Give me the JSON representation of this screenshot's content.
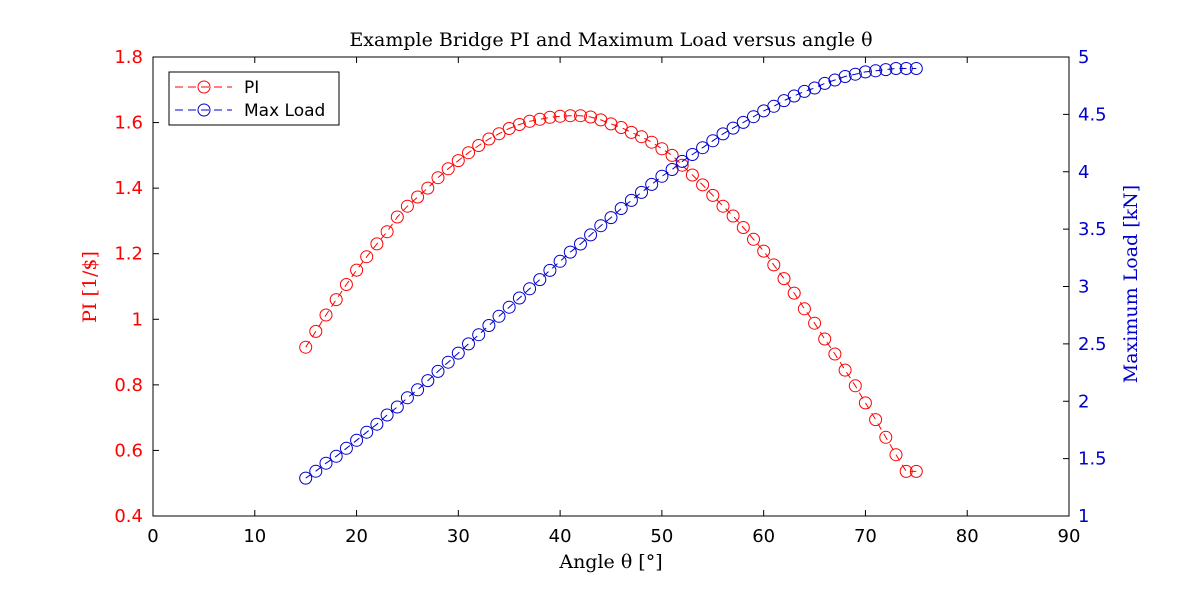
{
  "chart_data": {
    "type": "line",
    "title": "Example Bridge PI and Maximum Load versus angle θ",
    "xlabel": "Angle θ [°]",
    "ylabel_left": "PI [1/$]",
    "ylabel_right": "Maximum Load [kN]",
    "xlim": [
      0,
      90
    ],
    "ylim_left": [
      0.4,
      1.8
    ],
    "ylim_right": [
      1,
      5
    ],
    "xticks": [
      "0",
      "10",
      "20",
      "30",
      "40",
      "50",
      "60",
      "70",
      "80",
      "90"
    ],
    "yticks_left": [
      "0.4",
      "0.6",
      "0.8",
      "1",
      "1.2",
      "1.4",
      "1.6",
      "1.8"
    ],
    "yticks_right": [
      "1",
      "1.5",
      "2",
      "2.5",
      "3",
      "3.5",
      "4",
      "4.5",
      "5"
    ],
    "legend_position": "top-left",
    "grid": false,
    "x": [
      15,
      16,
      17,
      18,
      19,
      20,
      21,
      22,
      23,
      24,
      25,
      26,
      27,
      28,
      29,
      30,
      31,
      32,
      33,
      34,
      35,
      36,
      37,
      38,
      39,
      40,
      41,
      42,
      43,
      44,
      45,
      46,
      47,
      48,
      49,
      50,
      51,
      52,
      53,
      54,
      55,
      56,
      57,
      58,
      59,
      60,
      61,
      62,
      63,
      64,
      65,
      66,
      67,
      68,
      69,
      70,
      71,
      72,
      73,
      74,
      75
    ],
    "series": [
      {
        "name": "PI",
        "axis": "left",
        "color": "#ff0000",
        "values": [
          0.915,
          0.963,
          1.013,
          1.06,
          1.106,
          1.15,
          1.191,
          1.23,
          1.267,
          1.312,
          1.345,
          1.373,
          1.4,
          1.432,
          1.459,
          1.484,
          1.508,
          1.53,
          1.55,
          1.566,
          1.582,
          1.594,
          1.604,
          1.61,
          1.616,
          1.619,
          1.621,
          1.621,
          1.617,
          1.608,
          1.596,
          1.585,
          1.57,
          1.557,
          1.54,
          1.52,
          1.5,
          1.47,
          1.44,
          1.41,
          1.378,
          1.345,
          1.315,
          1.28,
          1.244,
          1.208,
          1.166,
          1.124,
          1.08,
          1.032,
          0.988,
          0.94,
          0.894,
          0.845,
          0.797,
          0.745,
          0.694,
          0.64,
          0.587,
          0.536,
          0.536
        ]
      },
      {
        "name": "Max Load",
        "axis": "right",
        "color": "#0000cc",
        "values": [
          1.33,
          1.39,
          1.46,
          1.52,
          1.59,
          1.66,
          1.73,
          1.8,
          1.88,
          1.95,
          2.03,
          2.1,
          2.18,
          2.26,
          2.34,
          2.42,
          2.5,
          2.58,
          2.66,
          2.74,
          2.82,
          2.9,
          2.98,
          3.06,
          3.14,
          3.22,
          3.3,
          3.37,
          3.45,
          3.53,
          3.6,
          3.68,
          3.75,
          3.82,
          3.89,
          3.96,
          4.02,
          4.09,
          4.15,
          4.21,
          4.27,
          4.33,
          4.38,
          4.43,
          4.48,
          4.53,
          4.57,
          4.62,
          4.66,
          4.7,
          4.73,
          4.77,
          4.8,
          4.83,
          4.85,
          4.87,
          4.88,
          4.89,
          4.9,
          4.9,
          4.9
        ]
      }
    ]
  }
}
